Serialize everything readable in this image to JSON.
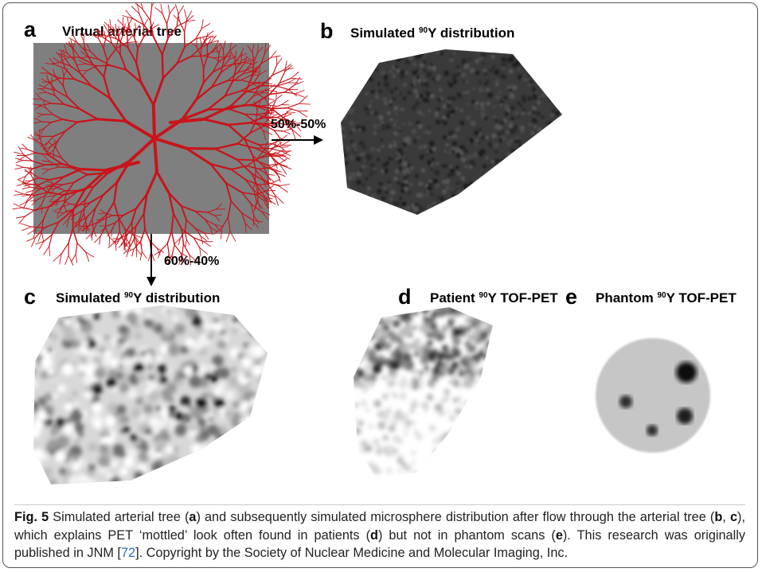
{
  "panels": [
    {
      "letter": "a",
      "title": "Virtual arterial tree"
    },
    {
      "letter": "b",
      "title_before": "Simulated ",
      "isotope": "90",
      "title_after": "Y distribution"
    },
    {
      "letter": "c",
      "title_before": "Simulated ",
      "isotope": "90",
      "title_after": "Y distribution"
    },
    {
      "letter": "d",
      "title_before": "Patient ",
      "isotope": "90",
      "title_after": "Y TOF-PET"
    },
    {
      "letter": "e",
      "title_before": "Phantom ",
      "isotope": "90",
      "title_after": "Y TOF-PET"
    }
  ],
  "arrows": [
    {
      "label": "50%-50%"
    },
    {
      "label": "60%-40%"
    }
  ],
  "caption": {
    "label": "Fig. 5",
    "parts": [
      " Simulated arterial tree (",
      "a",
      ") and subsequently simulated microsphere distribution after flow through the arterial tree (",
      "b",
      ", ",
      "c",
      "), which explains PET ‘mottled’ look often found in patients (",
      "d",
      ") but not in phantom scans (",
      "e",
      "). This research was originally published in JNM ["
    ],
    "ref": "72",
    "end": "]. Copyright by the Society of Nuclear Medicine and Molecular Imaging, Inc."
  }
}
